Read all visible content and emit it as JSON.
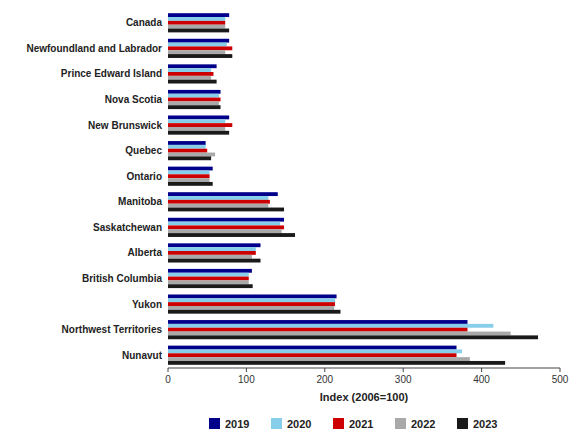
{
  "chart_data": {
    "type": "bar",
    "orientation": "horizontal",
    "categories": [
      "Canada",
      "Newfoundland and Labrador",
      "Prince Edward Island",
      "Nova Scotia",
      "New Brunswick",
      "Quebec",
      "Ontario",
      "Manitoba",
      "Saskatchewan",
      "Alberta",
      "British Columbia",
      "Yukon",
      "Northwest Territories",
      "Nunavut"
    ],
    "series": [
      {
        "name": "2019",
        "color": "#00008B",
        "values": [
          78,
          78,
          62,
          67,
          78,
          48,
          57,
          140,
          148,
          118,
          107,
          215,
          382,
          368
        ]
      },
      {
        "name": "2020",
        "color": "#87CEEB",
        "values": [
          73,
          75,
          55,
          65,
          73,
          48,
          53,
          128,
          143,
          112,
          103,
          213,
          415,
          375
        ]
      },
      {
        "name": "2021",
        "color": "#CC0000",
        "values": [
          73,
          82,
          58,
          67,
          82,
          50,
          53,
          130,
          148,
          112,
          103,
          213,
          382,
          368
        ]
      },
      {
        "name": "2022",
        "color": "#A9A9A9",
        "values": [
          73,
          73,
          55,
          65,
          73,
          60,
          53,
          128,
          145,
          107,
          103,
          212,
          437,
          385
        ]
      },
      {
        "name": "2023",
        "color": "#1A1A1A",
        "values": [
          78,
          82,
          62,
          67,
          78,
          55,
          57,
          148,
          162,
          118,
          108,
          220,
          472,
          430
        ]
      }
    ],
    "xlabel": "Index (2006=100)",
    "xlim": [
      0,
      500
    ],
    "xticks": [
      0,
      100,
      200,
      300,
      400,
      500
    ],
    "grid": false,
    "legend": "bottom"
  }
}
